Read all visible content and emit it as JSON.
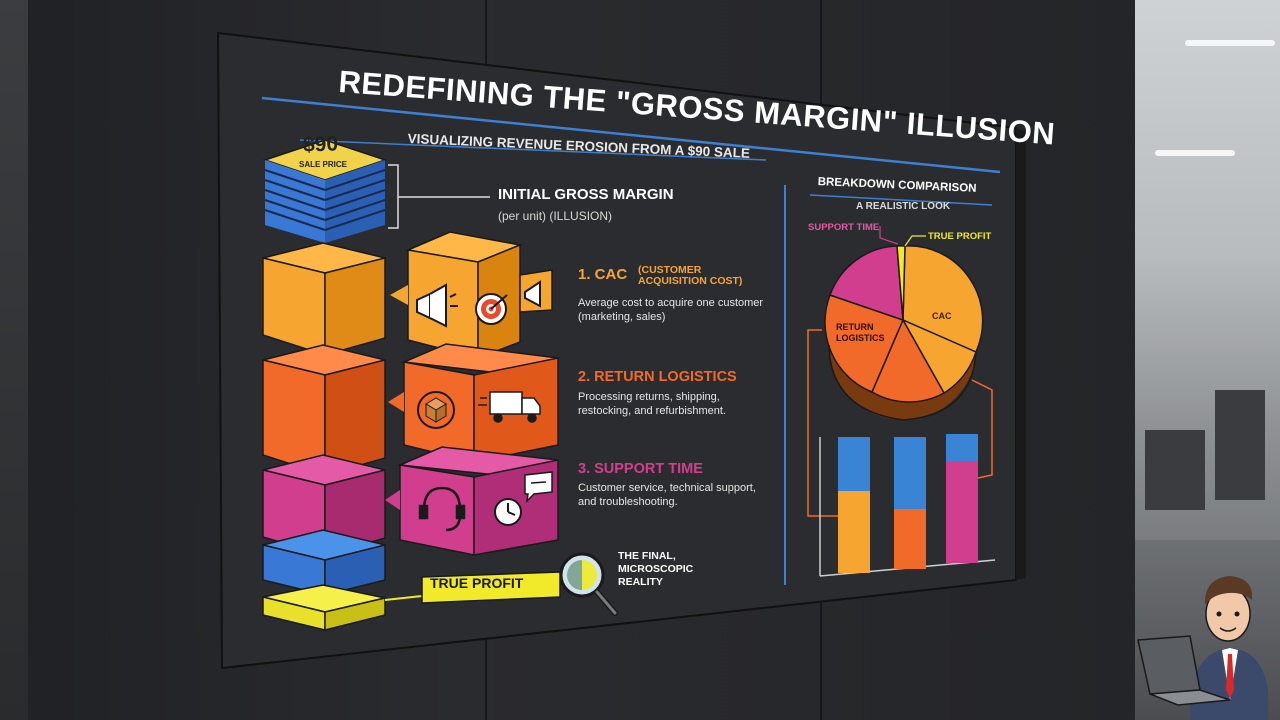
{
  "title": "REDEFINING THE \"GROSS MARGIN\" ILLUSION",
  "subtitle": "VISUALIZING REVENUE EROSION FROM A $90 SALE",
  "stack": {
    "price": "$90",
    "price_label": "SALE PRICE",
    "initial_title": "INITIAL GROSS MARGIN",
    "initial_sub": "(per unit) (ILLUSION)"
  },
  "cac": {
    "heading": "1. CAC",
    "heading_extra": "(CUSTOMER ACQUISITION COST)",
    "description": "Average cost to acquire one customer (marketing, sales)",
    "color": "#f7a531"
  },
  "returns": {
    "heading": "2. RETURN LOGISTICS",
    "description": "Processing returns, shipping, restocking, and refurbishment.",
    "color": "#f26a2a"
  },
  "support": {
    "heading": "3. SUPPORT TIME",
    "description": "Customer service, technical support, and troubleshooting.",
    "color": "#d13e8e"
  },
  "true_profit": {
    "label": "TRUE PROFIT",
    "note": "THE FINAL, MICROSCOPIC REALITY",
    "color": "#f0ea2a"
  },
  "breakdown": {
    "title": "BREAKDOWN COMPARISON",
    "subtitle": "A REALISTIC LOOK",
    "pie_labels": {
      "support": "SUPPORT TIME",
      "true_profit": "TRUE PROFIT",
      "cac": "CAC",
      "returns": "RETURN LOGISTICS"
    }
  },
  "icons": [
    "megaphone-icon",
    "target-icon",
    "box-return-icon",
    "delivery-truck-icon",
    "headset-icon",
    "clock-icon",
    "chat-bubble-icon",
    "magnifier-icon"
  ]
}
